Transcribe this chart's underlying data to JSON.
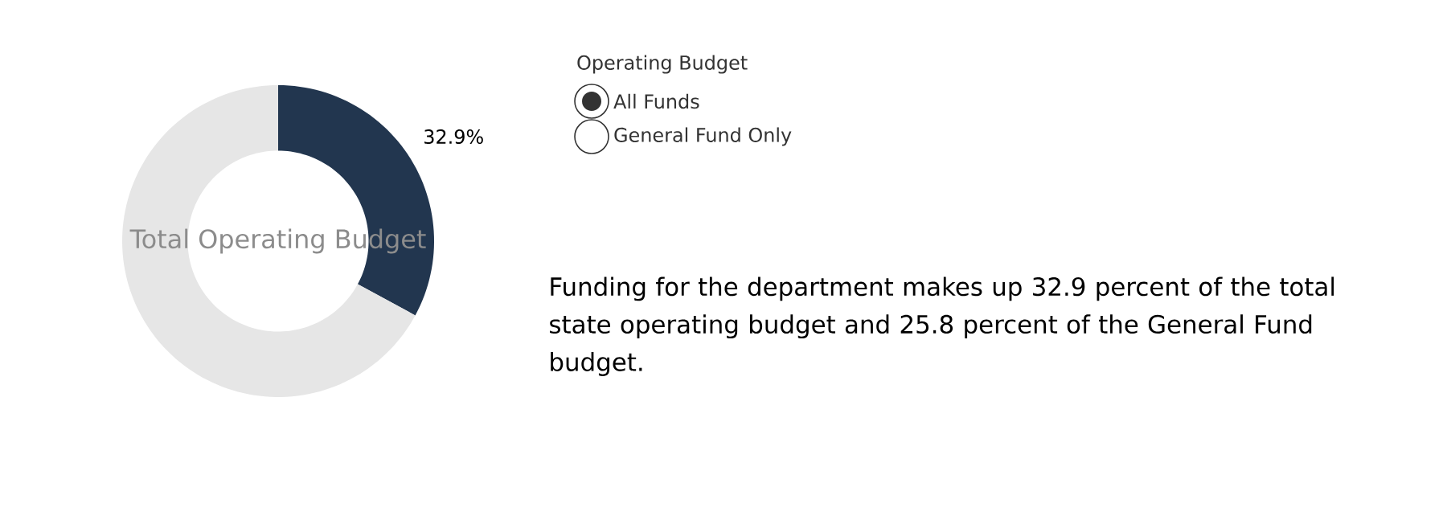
{
  "chart_data": {
    "type": "donut",
    "title": "Total Operating Budget",
    "categories": [
      null,
      null
    ],
    "values": [
      32.9,
      67.1
    ],
    "colors": [
      "#22364f",
      "#e6e6e6"
    ],
    "value_labels": [
      "32.9%",
      null
    ],
    "annotations": [
      "Operating Budget",
      "All Funds",
      "General Fund Only",
      "Funding for the department makes up 32.9 percent of the total state operating budget and 25.8 percent of the General Fund budget."
    ]
  }
}
